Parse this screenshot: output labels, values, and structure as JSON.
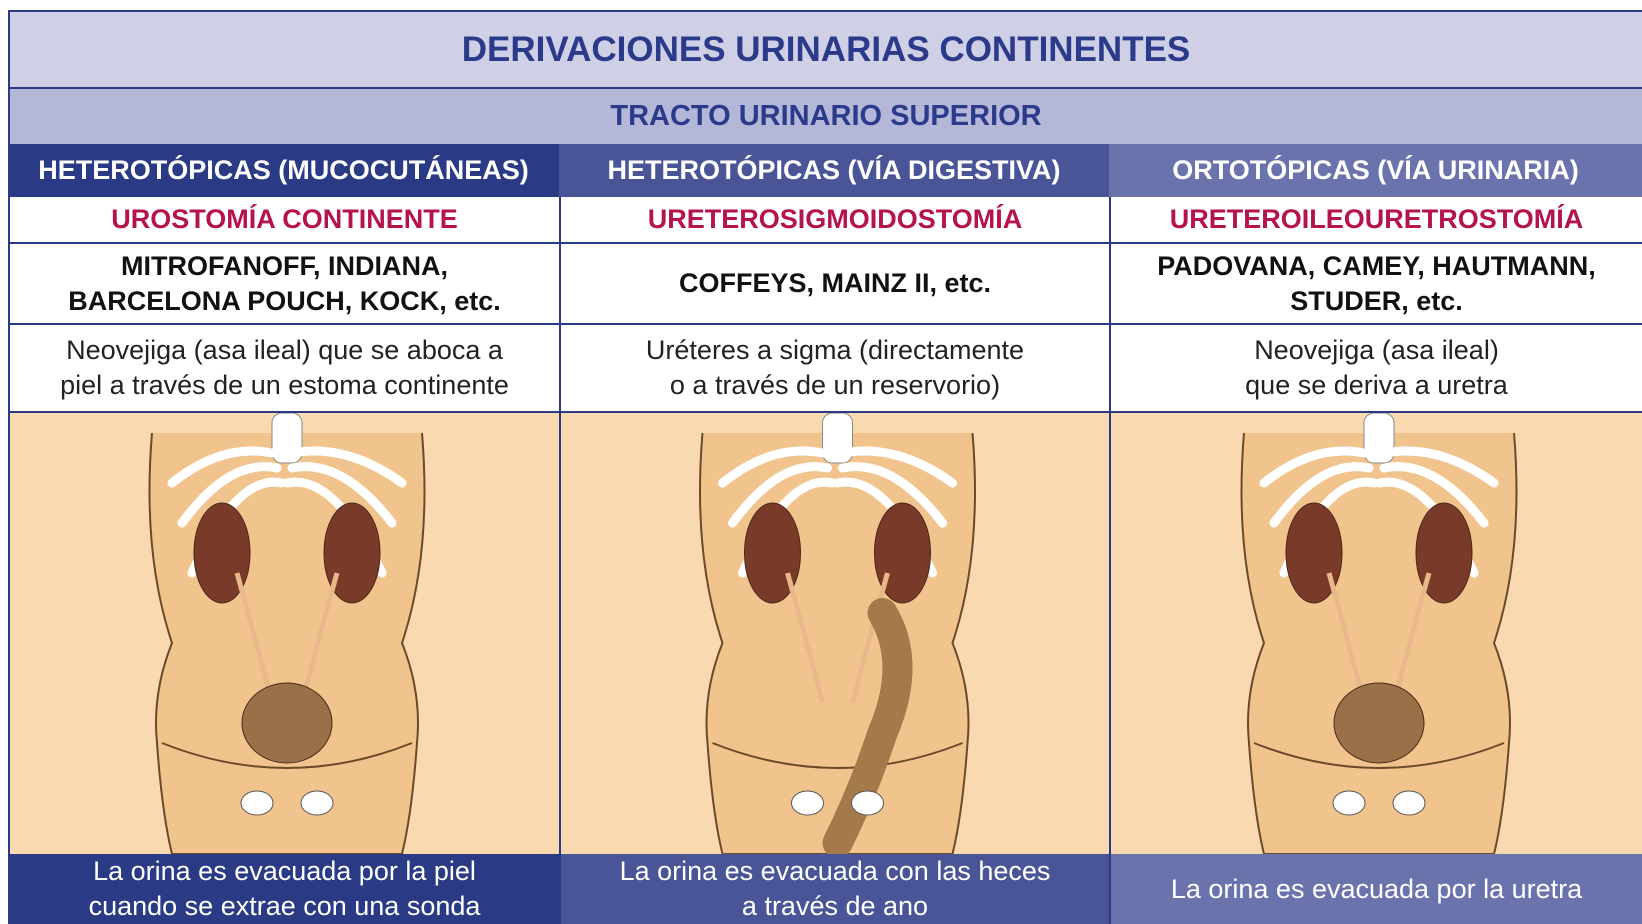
{
  "header": {
    "title": "DERIVACIONES URINARIAS CONTINENTES",
    "subtitle": "TRACTO URINARIO SUPERIOR"
  },
  "columns": [
    {
      "heading": "HETEROTÓPICAS (MUCOCUTÁNEAS)",
      "procedure": "UROSTOMÍA CONTINENTE",
      "examples": [
        "MITROFANOFF, INDIANA,",
        "BARCELONA POUCH, KOCK, etc."
      ],
      "description": [
        "Neovejiga (asa ileal) que se aboca a",
        "piel a través de un estoma continente"
      ],
      "footer": [
        "La orina es evacuada por la piel",
        "cuando se extrae con una sonda"
      ]
    },
    {
      "heading": "HETEROTÓPICAS (VÍA DIGESTIVA)",
      "procedure": "URETEROSIGMOIDOSTOMÍA",
      "examples": [
        "COFFEYS, MAINZ II, etc."
      ],
      "description": [
        "Uréteres a sigma (directamente",
        "o a través de un reservorio)"
      ],
      "footer": [
        "La orina es evacuada con las heces",
        "a través de ano"
      ]
    },
    {
      "heading": "ORTOTÓPICAS (VÍA URINARIA)",
      "procedure": "URETEROILEOURETROSTOMÍA",
      "examples": [
        "PADOVANA, CAMEY, HAUTMANN,",
        "STUDER, etc."
      ],
      "description": [
        "Neovejiga (asa ileal)",
        "que se deriva a uretra"
      ],
      "footer": [
        "La orina es evacuada por la uretra"
      ]
    }
  ]
}
